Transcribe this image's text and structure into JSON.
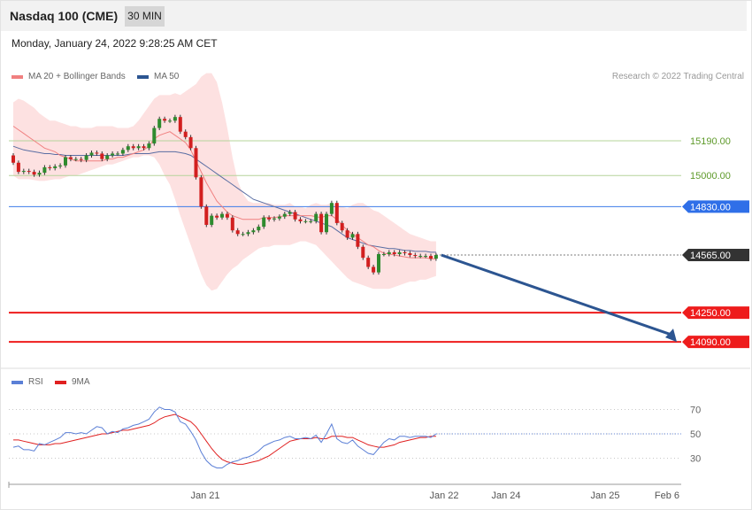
{
  "header": {
    "title": "Nasdaq 100 (CME)",
    "timeframe": "30 MIN"
  },
  "datetime": "Monday, January 24, 2022 9:28:25 AM CET",
  "legend": {
    "ma20": {
      "label": "MA 20 + Bollinger Bands",
      "color": "#f08080"
    },
    "ma50": {
      "label": "MA 50",
      "color": "#2c5591"
    },
    "rsi": {
      "label": "RSI",
      "color": "#5b7fd6"
    },
    "rsi_ma": {
      "label": "9MA",
      "color": "#e02020"
    }
  },
  "credit": "Research © 2022 Trading Central",
  "chart_data": [
    {
      "type": "candlestick",
      "ylim": [
        13950,
        15500
      ],
      "x_ticks": [
        "Jan 21",
        "Jan 22",
        "Jan 24",
        "Jan 25",
        "Feb 6"
      ],
      "levels": [
        {
          "label": "15190.00",
          "value": 15190,
          "kind": "resistance"
        },
        {
          "label": "15000.00",
          "value": 15000,
          "kind": "resistance"
        },
        {
          "label": "14830.00",
          "value": 14830,
          "kind": "pivot"
        },
        {
          "label": "14565.00",
          "value": 14565,
          "kind": "last"
        },
        {
          "label": "14250.00",
          "value": 14250,
          "kind": "support"
        },
        {
          "label": "14090.00",
          "value": 14090,
          "kind": "support"
        }
      ],
      "close": [
        15070,
        15020,
        15025,
        15020,
        15005,
        15015,
        15045,
        15040,
        15050,
        15055,
        15100,
        15090,
        15090,
        15085,
        15110,
        15125,
        15120,
        15090,
        15110,
        15120,
        15120,
        15140,
        15160,
        15150,
        15160,
        15150,
        15175,
        15260,
        15310,
        15300,
        15300,
        15320,
        15240,
        15210,
        15150,
        14990,
        14830,
        14730,
        14780,
        14770,
        14790,
        14770,
        14700,
        14680,
        14680,
        14690,
        14700,
        14720,
        14770,
        14760,
        14765,
        14775,
        14790,
        14800,
        14760,
        14750,
        14750,
        14750,
        14790,
        14690,
        14790,
        14850,
        14740,
        14700,
        14660,
        14680,
        14610,
        14550,
        14500,
        14470,
        14570,
        14570,
        14580,
        14570,
        14580,
        14575,
        14565,
        14560,
        14560,
        14560,
        14545,
        14565
      ],
      "ma20": [
        15270,
        15250,
        15230,
        15210,
        15190,
        15170,
        15150,
        15140,
        15130,
        15110,
        15100,
        15090,
        15080,
        15080,
        15080,
        15080,
        15080,
        15080,
        15090,
        15090,
        15100,
        15100,
        15110,
        15120,
        15130,
        15140,
        15160,
        15200,
        15220,
        15230,
        15240,
        15220,
        15200,
        15180,
        15140,
        15080,
        15020,
        14960,
        14910,
        14860,
        14830,
        14800,
        14780,
        14770,
        14760,
        14760,
        14760,
        14760,
        14770,
        14770,
        14770,
        14775,
        14780,
        14780,
        14780,
        14780,
        14780,
        14780,
        14775,
        14770,
        14780,
        14780,
        14760,
        14730,
        14700,
        14680,
        14660,
        14640,
        14620,
        14610,
        14590,
        14575,
        14570,
        14565,
        14560,
        14555,
        14550,
        14550,
        14550,
        14550,
        14545,
        14545
      ],
      "ma50": [
        15160,
        15150,
        15140,
        15135,
        15130,
        15125,
        15120,
        15120,
        15115,
        15115,
        15110,
        15110,
        15110,
        15110,
        15110,
        15110,
        15110,
        15110,
        15110,
        15110,
        15110,
        15110,
        15115,
        15120,
        15120,
        15120,
        15120,
        15125,
        15130,
        15130,
        15130,
        15130,
        15125,
        15120,
        15110,
        15090,
        15070,
        15050,
        15030,
        15010,
        14990,
        14970,
        14950,
        14930,
        14910,
        14890,
        14870,
        14860,
        14850,
        14840,
        14830,
        14820,
        14810,
        14800,
        14790,
        14780,
        14770,
        14760,
        14750,
        14740,
        14730,
        14720,
        14700,
        14680,
        14660,
        14650,
        14640,
        14630,
        14620,
        14615,
        14610,
        14605,
        14600,
        14600,
        14595,
        14590,
        14590,
        14585,
        14585,
        14585,
        14580,
        14580
      ],
      "bb_upper": [
        15400,
        15420,
        15410,
        15390,
        15370,
        15340,
        15320,
        15300,
        15300,
        15290,
        15280,
        15270,
        15270,
        15260,
        15260,
        15260,
        15270,
        15270,
        15270,
        15270,
        15260,
        15260,
        15260,
        15270,
        15300,
        15340,
        15380,
        15420,
        15440,
        15440,
        15440,
        15450,
        15440,
        15460,
        15480,
        15500,
        15540,
        15560,
        15560,
        15510,
        15400,
        15260,
        15100,
        14970,
        14900,
        14860,
        14850,
        14850,
        14850,
        14850,
        14840,
        14840,
        14840,
        14850,
        14830,
        14830,
        14820,
        14840,
        14850,
        14840,
        14840,
        14850,
        14840,
        14830,
        14820,
        14840,
        14850,
        14850,
        14830,
        14810,
        14800,
        14780,
        14760,
        14740,
        14720,
        14700,
        14680,
        14670,
        14660,
        14650,
        14640,
        14640
      ],
      "bb_lower": [
        15000,
        14980,
        14980,
        14980,
        14975,
        14970,
        14970,
        14975,
        14980,
        14980,
        14990,
        15000,
        15000,
        15010,
        15020,
        15030,
        15040,
        15050,
        15060,
        15060,
        15070,
        15080,
        15090,
        15100,
        15100,
        15110,
        15110,
        15100,
        15060,
        15000,
        14950,
        14870,
        14780,
        14700,
        14620,
        14540,
        14460,
        14400,
        14370,
        14380,
        14420,
        14460,
        14490,
        14510,
        14540,
        14560,
        14580,
        14600,
        14610,
        14610,
        14620,
        14620,
        14620,
        14620,
        14630,
        14640,
        14640,
        14630,
        14620,
        14590,
        14560,
        14530,
        14500,
        14470,
        14440,
        14420,
        14410,
        14400,
        14390,
        14380,
        14380,
        14380,
        14380,
        14390,
        14400,
        14410,
        14420,
        14420,
        14430,
        14430,
        14440,
        14450
      ]
    },
    {
      "type": "line",
      "ylim": [
        10,
        90
      ],
      "y_ticks": [
        70,
        50,
        30
      ],
      "series": [
        {
          "name": "RSI",
          "values": [
            39,
            40,
            37,
            37,
            36,
            42,
            41,
            43,
            45,
            47,
            51,
            51,
            50,
            51,
            50,
            53,
            56,
            55,
            50,
            52,
            51,
            54,
            55,
            57,
            58,
            60,
            62,
            68,
            72,
            70,
            70,
            68,
            60,
            58,
            52,
            45,
            35,
            28,
            24,
            22,
            22,
            25,
            27,
            28,
            30,
            31,
            33,
            36,
            40,
            42,
            44,
            45,
            47,
            48,
            46,
            46,
            47,
            46,
            49,
            43,
            50,
            58,
            46,
            43,
            42,
            45,
            40,
            37,
            34,
            33,
            38,
            43,
            46,
            45,
            48,
            48,
            47,
            48,
            48,
            48,
            47,
            50
          ]
        },
        {
          "name": "9MA",
          "values": [
            45,
            45,
            44,
            43,
            42,
            41,
            41,
            41,
            42,
            42,
            43,
            44,
            45,
            46,
            47,
            48,
            49,
            50,
            50,
            51,
            52,
            53,
            53,
            54,
            55,
            56,
            57,
            59,
            62,
            64,
            65,
            66,
            64,
            62,
            60,
            56,
            50,
            44,
            38,
            33,
            29,
            27,
            26,
            25,
            25,
            26,
            27,
            28,
            30,
            32,
            35,
            38,
            41,
            44,
            45,
            46,
            46,
            46,
            47,
            46,
            46,
            48,
            48,
            48,
            47,
            47,
            45,
            43,
            41,
            40,
            39,
            39,
            40,
            41,
            43,
            44,
            45,
            46,
            47,
            47,
            48,
            48
          ]
        }
      ]
    }
  ]
}
